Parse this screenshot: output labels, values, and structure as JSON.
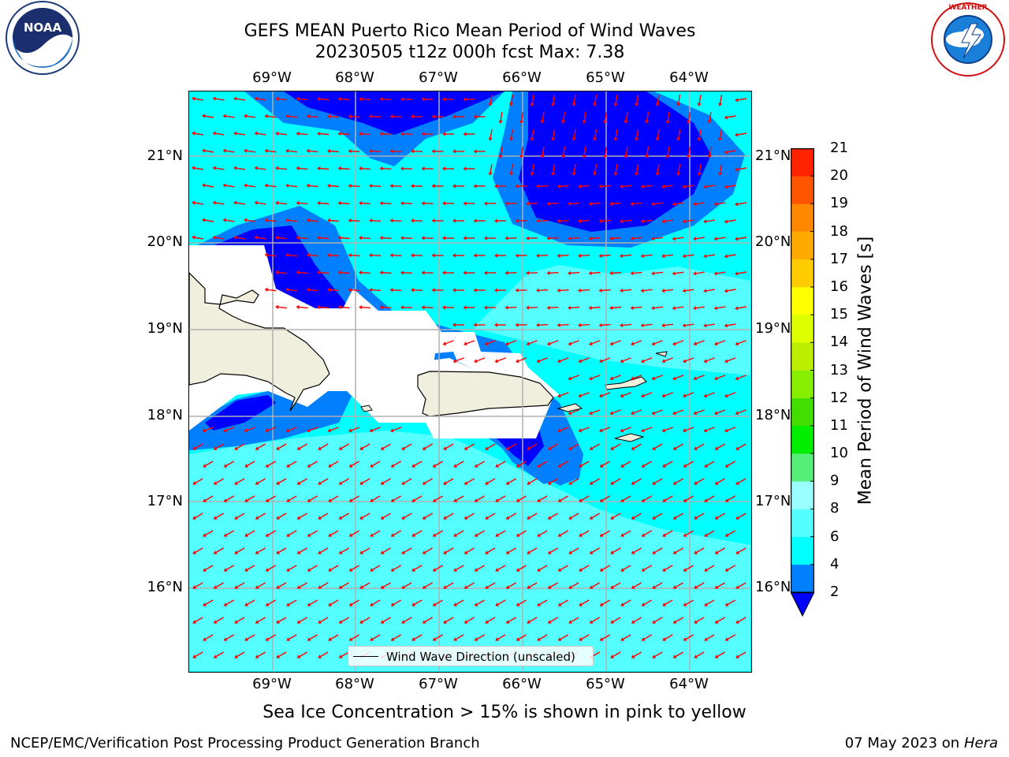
{
  "title_line1": "GEFS MEAN Puerto Rico Mean Period of Wind Waves",
  "title_line2": "20230505 t12z 000h fcst   Max: 7.38",
  "map": {
    "lon_labels": [
      "69°W",
      "68°W",
      "67°W",
      "66°W",
      "65°W",
      "64°W"
    ],
    "lat_labels": [
      "21°N",
      "20°N",
      "19°N",
      "18°N",
      "17°N",
      "16°N"
    ],
    "colors": {
      "ocean_4_6": "#00ffff",
      "ocean_6_8": "#55ffff",
      "ocean_2_4": "#0080ff",
      "ocean_lt2": "#0000ff",
      "land": "#f0eedc",
      "arrow": "#ff0000",
      "grid": "#b0b0b0"
    }
  },
  "legend": {
    "label": "Wind Wave Direction (unscaled)"
  },
  "colorbar": {
    "title": "Mean Period of Wind Waves [s]",
    "ticks": [
      "2",
      "4",
      "6",
      "8",
      "9",
      "10",
      "11",
      "12",
      "13",
      "14",
      "15",
      "16",
      "17",
      "18",
      "19",
      "20",
      "21"
    ],
    "colors": [
      "#0080ff",
      "#00ffff",
      "#55ffff",
      "#99ffff",
      "#55ee77",
      "#00ee00",
      "#44dd00",
      "#88ee00",
      "#bbee00",
      "#ddff00",
      "#ffff00",
      "#ffcc00",
      "#ffaa00",
      "#ff8800",
      "#ff5500",
      "#ff2200"
    ],
    "extend_color": "#0000ff"
  },
  "caption": "Sea Ice Concentration > 15% is shown in pink to yellow",
  "footer_left": "NCEP/EMC/Verification Post Processing Product Generation Branch",
  "footer_right_date": "07 May 2023 on",
  "footer_right_host": "Hera",
  "logos": {
    "left": "noaa-logo",
    "right": "national-weather-service-logo",
    "left_text": "NOAA",
    "right_text": "NATIONAL WEATHER SERVICE"
  }
}
